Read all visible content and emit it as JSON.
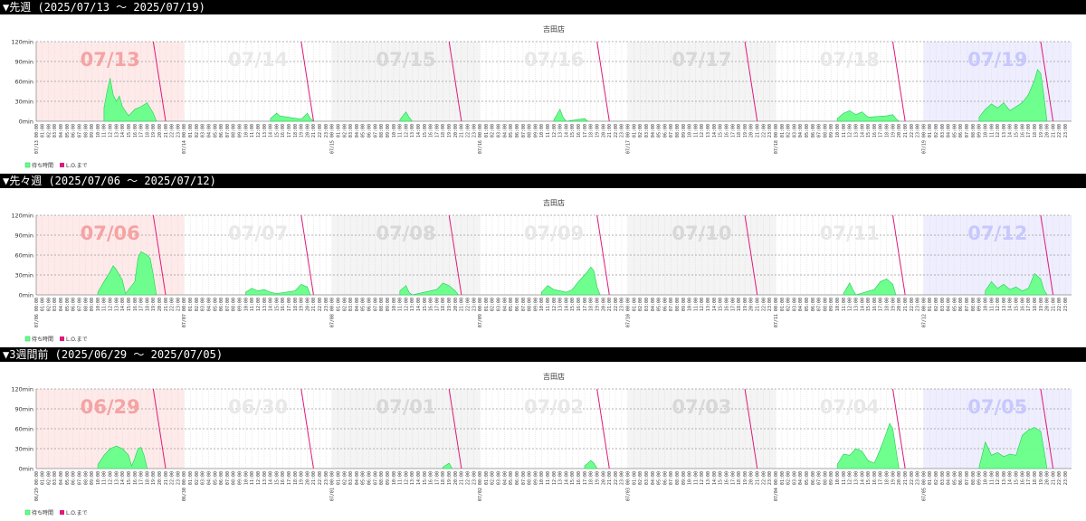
{
  "legend": {
    "wait": "待ち時間",
    "lo": "L.O.まで"
  },
  "colors": {
    "wait_fill": "#66ff88",
    "wait_stroke": "#22cc55",
    "lo_line": "#e0197a",
    "header_bg": "#000000",
    "header_text": "#ffffff"
  },
  "chart_data": [
    {
      "type": "area",
      "heading": "▼先週 (2025/07/13 〜 2025/07/19)",
      "title": "吉田店",
      "y_ticks": [
        "0min",
        "30min",
        "60min",
        "90min",
        "120min"
      ],
      "ylim": [
        0,
        120
      ],
      "x_tick_labels": [
        "00:00",
        "01:00",
        "02:00",
        "03:00",
        "04:00",
        "05:00",
        "06:00",
        "07:00",
        "08:00",
        "09:00",
        "10:00",
        "11:00",
        "12:00",
        "13:00",
        "14:00",
        "15:00",
        "16:00",
        "17:00",
        "18:00",
        "19:00",
        "20:00",
        "21:00",
        "22:00",
        "23:00"
      ],
      "days": [
        {
          "date": "07/13",
          "date_tick": "07/13 00:00",
          "tint": "#ffeaea",
          "label_color": "#f5a3a3",
          "series": [
            [
              11,
              20
            ],
            [
              11.5,
              45
            ],
            [
              12,
              65
            ],
            [
              12.5,
              40
            ],
            [
              13,
              30
            ],
            [
              13.5,
              38
            ],
            [
              14,
              22
            ],
            [
              15,
              8
            ],
            [
              16,
              18
            ],
            [
              17,
              22
            ],
            [
              18,
              28
            ],
            [
              19,
              12
            ],
            [
              19.5,
              0
            ]
          ]
        },
        {
          "date": "07/14",
          "date_tick": "07/14 00:00",
          "tint": "#ffffff",
          "label_color": "#e8e8e8",
          "series": [
            [
              14,
              4
            ],
            [
              15,
              12
            ],
            [
              15.5,
              8
            ],
            [
              19,
              3
            ],
            [
              20,
              12
            ],
            [
              20.5,
              4
            ],
            [
              21,
              0
            ]
          ]
        },
        {
          "date": "07/15",
          "date_tick": "07/15 00:00",
          "tint": "#f4f4f4",
          "label_color": "#d8d8d8",
          "series": [
            [
              11,
              2
            ],
            [
              12,
              14
            ],
            [
              12.5,
              6
            ],
            [
              13,
              0
            ]
          ]
        },
        {
          "date": "07/16",
          "date_tick": "07/16 00:00",
          "tint": "#ffffff",
          "label_color": "#e8e8e8",
          "series": [
            [
              12,
              2
            ],
            [
              13,
              18
            ],
            [
              13.5,
              6
            ],
            [
              14,
              0
            ],
            [
              17,
              4
            ],
            [
              17.5,
              0
            ]
          ]
        },
        {
          "date": "07/17",
          "date_tick": "07/17 00:00",
          "tint": "#f4f4f4",
          "label_color": "#d8d8d8",
          "series": []
        },
        {
          "date": "07/18",
          "date_tick": "07/18 00:00",
          "tint": "#ffffff",
          "label_color": "#e8e8e8",
          "series": [
            [
              10,
              4
            ],
            [
              11,
              12
            ],
            [
              12,
              16
            ],
            [
              13,
              10
            ],
            [
              14,
              14
            ],
            [
              15,
              6
            ],
            [
              18,
              8
            ],
            [
              19,
              10
            ],
            [
              19.5,
              4
            ],
            [
              20,
              0
            ]
          ]
        },
        {
          "date": "07/19",
          "date_tick": "07/19 00:00",
          "tint": "#eeeeff",
          "label_color": "#c8c8ff",
          "series": [
            [
              9,
              6
            ],
            [
              10,
              18
            ],
            [
              11,
              26
            ],
            [
              12,
              20
            ],
            [
              13,
              28
            ],
            [
              14,
              16
            ],
            [
              15,
              22
            ],
            [
              16,
              28
            ],
            [
              17,
              40
            ],
            [
              18,
              62
            ],
            [
              18.5,
              78
            ],
            [
              19,
              72
            ],
            [
              19.5,
              40
            ],
            [
              20,
              0
            ]
          ]
        }
      ]
    },
    {
      "type": "area",
      "heading": "▼先々週 (2025/07/06 〜 2025/07/12)",
      "title": "吉田店",
      "y_ticks": [
        "0min",
        "30min",
        "60min",
        "90min",
        "120min"
      ],
      "ylim": [
        0,
        120
      ],
      "x_tick_labels": [
        "00:00",
        "01:00",
        "02:00",
        "03:00",
        "04:00",
        "05:00",
        "06:00",
        "07:00",
        "08:00",
        "09:00",
        "10:00",
        "11:00",
        "12:00",
        "13:00",
        "14:00",
        "15:00",
        "16:00",
        "17:00",
        "18:00",
        "19:00",
        "20:00",
        "21:00",
        "22:00",
        "23:00"
      ],
      "days": [
        {
          "date": "07/06",
          "date_tick": "07/06 00:00",
          "tint": "#ffeaea",
          "label_color": "#f5a3a3",
          "series": [
            [
              10,
              4
            ],
            [
              11,
              20
            ],
            [
              12,
              35
            ],
            [
              12.5,
              44
            ],
            [
              13,
              38
            ],
            [
              14,
              22
            ],
            [
              14.5,
              2
            ],
            [
              16,
              20
            ],
            [
              16.5,
              55
            ],
            [
              17,
              65
            ],
            [
              18,
              60
            ],
            [
              18.5,
              55
            ],
            [
              19,
              30
            ],
            [
              19.5,
              0
            ]
          ]
        },
        {
          "date": "07/07",
          "date_tick": "07/07 00:00",
          "tint": "#ffffff",
          "label_color": "#e8e8e8",
          "series": [
            [
              10,
              4
            ],
            [
              11,
              10
            ],
            [
              12,
              6
            ],
            [
              13,
              8
            ],
            [
              14,
              4
            ],
            [
              15,
              2
            ],
            [
              18,
              6
            ],
            [
              19,
              16
            ],
            [
              20,
              12
            ],
            [
              20.5,
              0
            ]
          ]
        },
        {
          "date": "07/08",
          "date_tick": "07/08 00:00",
          "tint": "#f4f4f4",
          "label_color": "#d8d8d8",
          "series": [
            [
              11,
              6
            ],
            [
              12,
              14
            ],
            [
              12.5,
              4
            ],
            [
              13,
              0
            ],
            [
              17,
              8
            ],
            [
              18,
              18
            ],
            [
              19,
              14
            ],
            [
              20,
              6
            ],
            [
              20.5,
              0
            ]
          ]
        },
        {
          "date": "07/09",
          "date_tick": "07/09 00:00",
          "tint": "#ffffff",
          "label_color": "#e8e8e8",
          "series": [
            [
              10,
              4
            ],
            [
              11,
              14
            ],
            [
              12,
              8
            ],
            [
              13,
              6
            ],
            [
              14,
              4
            ],
            [
              15,
              8
            ],
            [
              16,
              20
            ],
            [
              17,
              30
            ],
            [
              18,
              42
            ],
            [
              18.5,
              36
            ],
            [
              19,
              12
            ],
            [
              19.5,
              0
            ]
          ]
        },
        {
          "date": "07/10",
          "date_tick": "07/10 00:00",
          "tint": "#f4f4f4",
          "label_color": "#d8d8d8",
          "series": []
        },
        {
          "date": "07/11",
          "date_tick": "07/11 00:00",
          "tint": "#ffffff",
          "label_color": "#e8e8e8",
          "series": [
            [
              11,
              2
            ],
            [
              12,
              18
            ],
            [
              12.5,
              8
            ],
            [
              13,
              0
            ],
            [
              16,
              8
            ],
            [
              17,
              20
            ],
            [
              18,
              24
            ],
            [
              19,
              16
            ],
            [
              19.5,
              0
            ]
          ]
        },
        {
          "date": "07/12",
          "date_tick": "07/12 00:00",
          "tint": "#eeeeff",
          "label_color": "#c8c8ff",
          "series": [
            [
              10,
              6
            ],
            [
              11,
              20
            ],
            [
              12,
              10
            ],
            [
              13,
              16
            ],
            [
              14,
              8
            ],
            [
              15,
              12
            ],
            [
              16,
              6
            ],
            [
              17,
              10
            ],
            [
              18,
              32
            ],
            [
              19,
              24
            ],
            [
              19.5,
              8
            ],
            [
              20,
              0
            ]
          ]
        }
      ]
    },
    {
      "type": "area",
      "heading": "▼3週間前 (2025/06/29 〜 2025/07/05)",
      "title": "吉田店",
      "y_ticks": [
        "0min",
        "30min",
        "60min",
        "90min",
        "120min"
      ],
      "ylim": [
        0,
        120
      ],
      "x_tick_labels": [
        "00:00",
        "01:00",
        "02:00",
        "03:00",
        "04:00",
        "05:00",
        "06:00",
        "07:00",
        "08:00",
        "09:00",
        "10:00",
        "11:00",
        "12:00",
        "13:00",
        "14:00",
        "15:00",
        "16:00",
        "17:00",
        "18:00",
        "19:00",
        "20:00",
        "21:00",
        "22:00",
        "23:00"
      ],
      "days": [
        {
          "date": "06/29",
          "date_tick": "06/29 00:00",
          "tint": "#ffeaea",
          "label_color": "#f5a3a3",
          "series": [
            [
              10,
              6
            ],
            [
              11,
              20
            ],
            [
              12,
              30
            ],
            [
              13,
              34
            ],
            [
              14,
              30
            ],
            [
              15,
              20
            ],
            [
              15.5,
              4
            ],
            [
              16,
              16
            ],
            [
              16.5,
              30
            ],
            [
              17,
              32
            ],
            [
              17.5,
              20
            ],
            [
              18,
              0
            ]
          ]
        },
        {
          "date": "06/30",
          "date_tick": "06/30 00:00",
          "tint": "#ffffff",
          "label_color": "#e8e8e8",
          "series": []
        },
        {
          "date": "07/01",
          "date_tick": "07/01 00:00",
          "tint": "#f4f4f4",
          "label_color": "#d8d8d8",
          "series": [
            [
              18,
              2
            ],
            [
              19,
              8
            ],
            [
              19.5,
              0
            ]
          ]
        },
        {
          "date": "07/02",
          "date_tick": "07/02 00:00",
          "tint": "#ffffff",
          "label_color": "#e8e8e8",
          "series": [
            [
              17,
              4
            ],
            [
              18,
              12
            ],
            [
              18.5,
              8
            ],
            [
              19,
              0
            ]
          ]
        },
        {
          "date": "07/03",
          "date_tick": "07/03 00:00",
          "tint": "#f4f4f4",
          "label_color": "#d8d8d8",
          "series": []
        },
        {
          "date": "07/04",
          "date_tick": "07/04 00:00",
          "tint": "#ffffff",
          "label_color": "#e8e8e8",
          "series": [
            [
              10,
              6
            ],
            [
              11,
              22
            ],
            [
              12,
              20
            ],
            [
              13,
              30
            ],
            [
              14,
              26
            ],
            [
              15,
              12
            ],
            [
              16,
              8
            ],
            [
              17,
              30
            ],
            [
              18,
              55
            ],
            [
              18.5,
              68
            ],
            [
              19,
              60
            ],
            [
              19.5,
              30
            ],
            [
              20,
              0
            ]
          ]
        },
        {
          "date": "07/05",
          "date_tick": "07/05 00:00",
          "tint": "#eeeeff",
          "label_color": "#c8c8ff",
          "series": [
            [
              9,
              2
            ],
            [
              10,
              40
            ],
            [
              11,
              20
            ],
            [
              12,
              24
            ],
            [
              13,
              18
            ],
            [
              14,
              22
            ],
            [
              15,
              20
            ],
            [
              16,
              50
            ],
            [
              17,
              58
            ],
            [
              18,
              62
            ],
            [
              19,
              56
            ],
            [
              19.5,
              30
            ],
            [
              20,
              0
            ]
          ]
        }
      ]
    }
  ]
}
